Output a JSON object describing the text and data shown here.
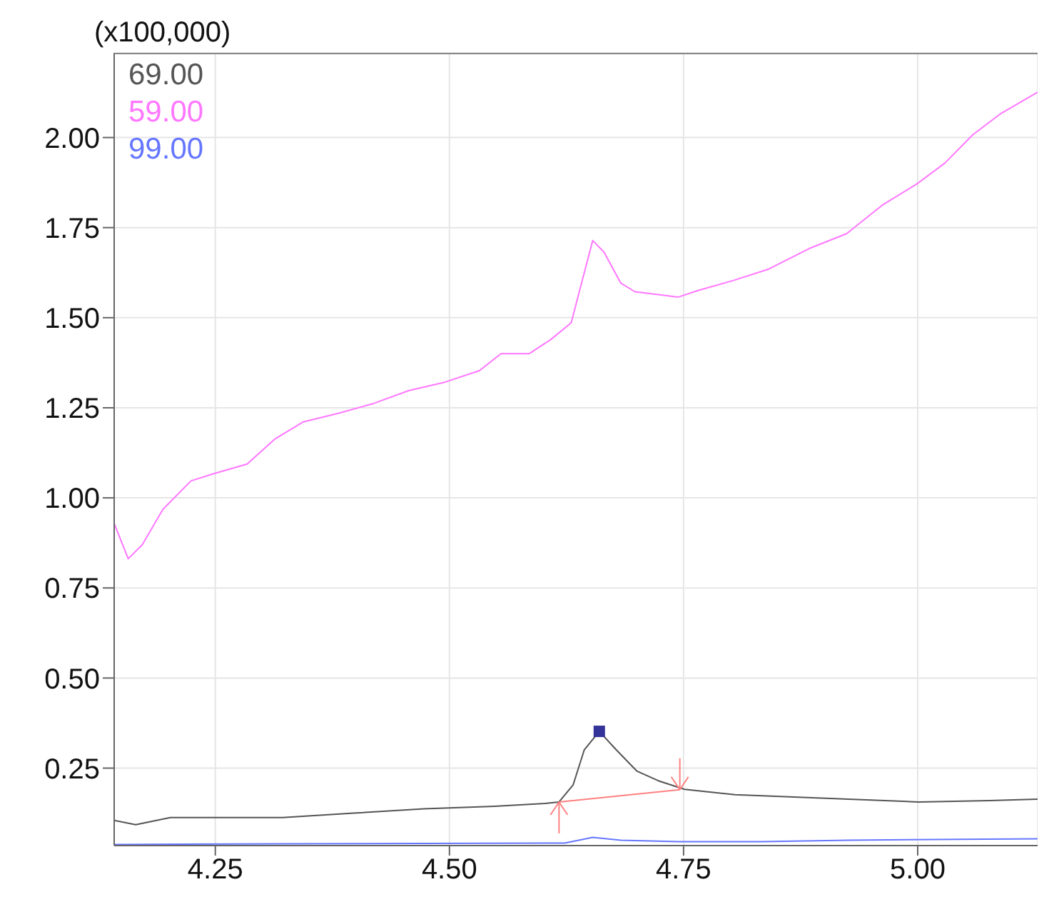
{
  "chart_data": {
    "type": "line",
    "ylabel": "(x100,000)",
    "xlim": [
      4.142,
      5.128
    ],
    "ylim": [
      0.035,
      2.235
    ],
    "xticks": [
      4.25,
      {
        "value": 4.5,
        "label": "4.50"
      },
      4.75,
      {
        "value": 5,
        "label": "5.00"
      }
    ],
    "yticks": [
      0.25,
      {
        "value": 0.5,
        "label": "0.50"
      },
      0.75,
      {
        "value": 1,
        "label": "1.00"
      },
      1.25,
      {
        "value": 1.5,
        "label": "1.50"
      },
      1.75,
      {
        "value": 2,
        "label": "2.00"
      }
    ],
    "grid": true,
    "line_style": "solid",
    "series": [
      {
        "name": "69.00",
        "color": "#555555",
        "x": [
          4.142,
          4.165,
          4.202,
          4.322,
          4.398,
          4.473,
          4.548,
          4.602,
          4.617,
          4.632,
          4.644,
          4.66,
          4.678,
          4.7,
          4.723,
          4.751,
          4.805,
          4.926,
          5.001,
          5.077,
          5.128
        ],
        "values": [
          0.105,
          0.093,
          0.113,
          0.113,
          0.125,
          0.137,
          0.144,
          0.152,
          0.156,
          0.203,
          0.301,
          0.352,
          0.301,
          0.242,
          0.215,
          0.191,
          0.176,
          0.164,
          0.156,
          0.16,
          0.164
        ]
      },
      {
        "name": "59.00",
        "color": "#ff77ff",
        "x": [
          4.142,
          4.157,
          4.172,
          4.194,
          4.224,
          4.247,
          4.284,
          4.314,
          4.344,
          4.382,
          4.419,
          4.457,
          4.495,
          4.532,
          4.555,
          4.585,
          4.608,
          4.63,
          4.641,
          4.653,
          4.665,
          4.683,
          4.698,
          4.72,
          4.744,
          4.766,
          4.804,
          4.841,
          4.886,
          4.924,
          4.962,
          4.999,
          5.029,
          5.059,
          5.089,
          5.128
        ],
        "values": [
          0.929,
          0.831,
          0.87,
          0.968,
          1.047,
          1.066,
          1.094,
          1.164,
          1.211,
          1.235,
          1.262,
          1.298,
          1.321,
          1.353,
          1.4,
          1.4,
          1.439,
          1.486,
          1.596,
          1.714,
          1.682,
          1.596,
          1.572,
          1.565,
          1.557,
          1.576,
          1.604,
          1.635,
          1.694,
          1.733,
          1.812,
          1.871,
          1.929,
          2.008,
          2.067,
          2.126
        ]
      },
      {
        "name": "99.00",
        "color": "#6677ff",
        "x": [
          4.142,
          4.322,
          4.623,
          4.653,
          4.683,
          4.744,
          4.834,
          4.926,
          5.128
        ],
        "values": [
          0.038,
          0.04,
          0.042,
          0.058,
          0.05,
          0.046,
          0.046,
          0.05,
          0.054
        ]
      },
      {
        "type": "line",
        "color": "#ff8080",
        "x": [
          4.617,
          4.746
        ],
        "values": [
          0.156,
          0.19
        ]
      },
      {
        "type": "scatter",
        "marker": "square",
        "color": "#333399",
        "x": [
          4.66
        ],
        "values": [
          0.352
        ]
      }
    ]
  }
}
